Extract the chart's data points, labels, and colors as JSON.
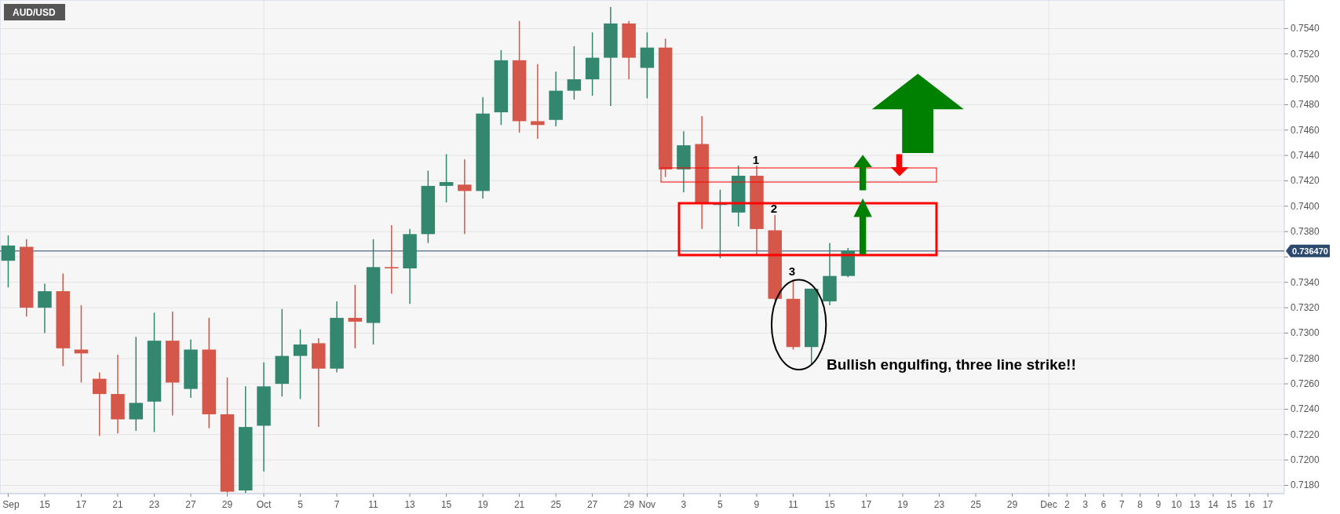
{
  "chart_data": {
    "type": "candlestick",
    "title": "AUD/USD",
    "categories": [
      "Sep",
      null,
      "15",
      null,
      "17",
      null,
      "21",
      null,
      "23",
      null,
      "27",
      null,
      "29",
      null,
      "Oct",
      null,
      "5",
      null,
      "7",
      null,
      "11",
      null,
      "13",
      null,
      "15",
      null,
      "19",
      null,
      "21",
      null,
      "25",
      null,
      "27",
      null,
      "29",
      "Nov",
      null,
      "3",
      null,
      "5",
      null,
      "9",
      null,
      "11",
      null,
      "15",
      null,
      "17",
      null,
      "19",
      null,
      "23",
      null,
      "25",
      null,
      "29",
      null,
      "Dec",
      "2",
      "3",
      "6",
      "7",
      "8",
      "9",
      "10",
      "13",
      "14",
      "15",
      "16",
      "17"
    ],
    "ohlc": [
      [
        0.7357,
        0.7377,
        0.7336,
        0.7369
      ],
      [
        0.7368,
        0.7374,
        0.7313,
        0.732
      ],
      [
        0.732,
        0.7339,
        0.73,
        0.7333
      ],
      [
        0.7333,
        0.7347,
        0.7274,
        0.7288
      ],
      [
        0.7287,
        0.7322,
        0.7261,
        0.7284
      ],
      [
        0.7264,
        0.7269,
        0.7219,
        0.7252
      ],
      [
        0.7252,
        0.7283,
        0.7221,
        0.7232
      ],
      [
        0.7232,
        0.7297,
        0.7223,
        0.7245
      ],
      [
        0.7246,
        0.7316,
        0.7222,
        0.7294
      ],
      [
        0.7294,
        0.7317,
        0.7235,
        0.7261
      ],
      [
        0.7256,
        0.7295,
        0.7249,
        0.7287
      ],
      [
        0.7287,
        0.7312,
        0.7225,
        0.7236
      ],
      [
        0.7236,
        0.7265,
        0.7174,
        0.7175
      ],
      [
        0.7176,
        0.7258,
        0.7174,
        0.7226
      ],
      [
        0.7227,
        0.7277,
        0.7191,
        0.7258
      ],
      [
        0.726,
        0.7319,
        0.725,
        0.7282
      ],
      [
        0.7282,
        0.7303,
        0.7248,
        0.7291
      ],
      [
        0.7292,
        0.7296,
        0.7226,
        0.7272
      ],
      [
        0.7272,
        0.7325,
        0.7269,
        0.7312
      ],
      [
        0.7312,
        0.7338,
        0.7288,
        0.7309
      ],
      [
        0.7308,
        0.7374,
        0.7291,
        0.7352
      ],
      [
        0.7352,
        0.7385,
        0.7331,
        0.7351
      ],
      [
        0.7351,
        0.7382,
        0.7323,
        0.7378
      ],
      [
        0.7378,
        0.7428,
        0.7371,
        0.7416
      ],
      [
        0.7416,
        0.7441,
        0.7403,
        0.7419
      ],
      [
        0.7417,
        0.7437,
        0.7378,
        0.7412
      ],
      [
        0.7412,
        0.7486,
        0.7406,
        0.7473
      ],
      [
        0.7474,
        0.7523,
        0.7464,
        0.7515
      ],
      [
        0.7515,
        0.7546,
        0.7458,
        0.7467
      ],
      [
        0.7467,
        0.7512,
        0.7453,
        0.7464
      ],
      [
        0.7468,
        0.7506,
        0.7463,
        0.7491
      ],
      [
        0.7491,
        0.7526,
        0.7484,
        0.75
      ],
      [
        0.75,
        0.7537,
        0.7487,
        0.7517
      ],
      [
        0.7517,
        0.7557,
        0.7479,
        0.7544
      ],
      [
        0.7544,
        0.7546,
        0.75,
        0.7517
      ],
      [
        0.7509,
        0.7537,
        0.7485,
        0.7525
      ],
      [
        0.7525,
        0.7532,
        0.7423,
        0.7429
      ],
      [
        0.7429,
        0.7459,
        0.7411,
        0.7448
      ],
      [
        0.7449,
        0.7471,
        0.7382,
        0.7402
      ],
      [
        0.7401,
        0.7413,
        0.7359,
        0.7402
      ],
      [
        0.7395,
        0.7432,
        0.7384,
        0.7424
      ],
      [
        0.7424,
        0.7432,
        0.7361,
        0.7382
      ],
      [
        0.7381,
        0.7393,
        0.7326,
        0.7327
      ],
      [
        0.7327,
        0.7342,
        0.7287,
        0.7289
      ],
      [
        0.7289,
        0.7335,
        0.7275,
        0.7335
      ],
      [
        0.7325,
        0.7371,
        0.7322,
        0.7345
      ],
      [
        0.7345,
        0.7367,
        0.7344,
        0.7365
      ],
      null,
      null,
      null,
      null,
      null,
      null,
      null,
      null,
      null,
      null,
      null,
      null,
      null,
      null,
      null,
      null,
      null,
      null,
      null,
      null,
      null,
      null,
      null
    ],
    "colors": [
      "#34876f",
      "#d5574a",
      "#34876f",
      "#d5574a",
      "#d5574a",
      "#d5574a",
      "#d5574a",
      "#34876f",
      "#34876f",
      "#d5574a",
      "#34876f",
      "#d5574a",
      "#d5574a",
      "#34876f",
      "#34876f",
      "#34876f",
      "#34876f",
      "#d5574a",
      "#34876f",
      "#d5574a",
      "#34876f",
      "#d5574a",
      "#34876f",
      "#34876f",
      "#34876f",
      "#d5574a",
      "#34876f",
      "#34876f",
      "#d5574a",
      "#d5574a",
      "#34876f",
      "#34876f",
      "#34876f",
      "#34876f",
      "#d5574a",
      "#34876f",
      "#d5574a",
      "#34876f",
      "#d5574a",
      "#34876f",
      "#34876f",
      "#d5574a",
      "#d5574a",
      "#d5574a",
      "#34876f",
      "#34876f",
      "#34876f",
      null,
      null,
      null,
      null,
      null,
      null,
      null,
      null,
      null,
      null,
      null,
      null,
      null,
      null,
      null,
      null,
      null,
      null,
      null,
      null,
      null,
      null,
      null
    ],
    "ylim": [
      0.71735,
      0.75625
    ],
    "yticks": [
      {
        "value": 0.718,
        "label": "0.7180"
      },
      {
        "value": 0.72,
        "label": "0.7200"
      },
      {
        "value": 0.722,
        "label": "0.7220"
      },
      {
        "value": 0.724,
        "label": "0.7240"
      },
      {
        "value": 0.726,
        "label": "0.7260"
      },
      {
        "value": 0.728,
        "label": "0.7280"
      },
      {
        "value": 0.73,
        "label": "0.7300"
      },
      {
        "value": 0.732,
        "label": "0.7320"
      },
      {
        "value": 0.734,
        "label": "0.7340"
      },
      {
        "value": 0.736,
        "label": null
      },
      {
        "value": 0.738,
        "label": "0.7380"
      },
      {
        "value": 0.74,
        "label": "0.7400"
      },
      {
        "value": 0.742,
        "label": "0.7420"
      },
      {
        "value": 0.744,
        "label": "0.7440"
      },
      {
        "value": 0.746,
        "label": "0.7460"
      },
      {
        "value": 0.748,
        "label": "0.7480"
      },
      {
        "value": 0.75,
        "label": "0.7500"
      },
      {
        "value": 0.752,
        "label": "0.7520"
      },
      {
        "value": 0.754,
        "label": "0.7540"
      }
    ],
    "grid": true,
    "ref_lines": [
      {
        "axis": "y",
        "value": 0.73647,
        "label": "0.736470",
        "color": "#2b4a6e"
      }
    ],
    "annotations": [
      "1",
      "2",
      "3",
      "Bullish engulfing, three line strike!!"
    ]
  }
}
